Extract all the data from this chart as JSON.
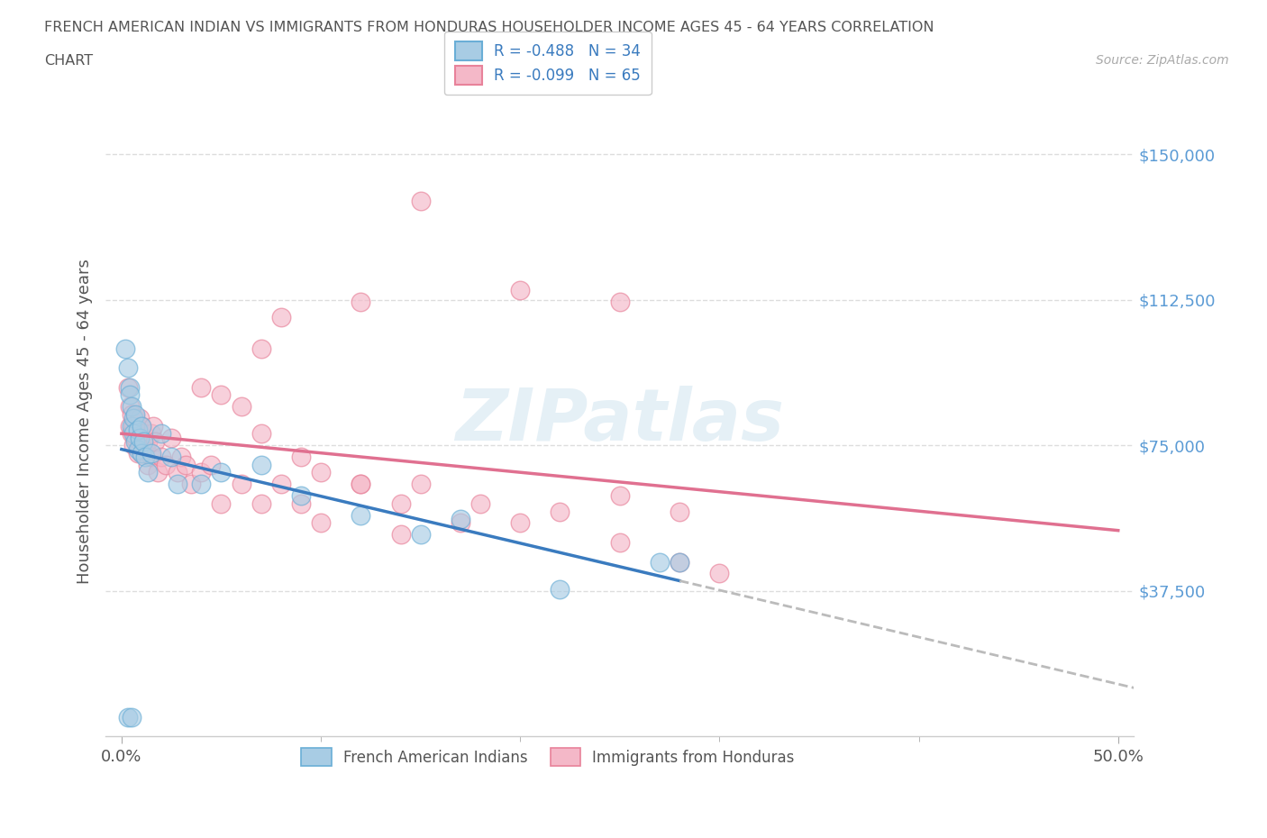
{
  "title_line1": "FRENCH AMERICAN INDIAN VS IMMIGRANTS FROM HONDURAS HOUSEHOLDER INCOME AGES 45 - 64 YEARS CORRELATION",
  "title_line2": "CHART",
  "source_text": "Source: ZipAtlas.com",
  "ylabel": "Householder Income Ages 45 - 64 years",
  "legend_1_label": "R = -0.488   N = 34",
  "legend_2_label": "R = -0.099   N = 65",
  "bottom_legend_1": "French American Indians",
  "bottom_legend_2": "Immigrants from Honduras",
  "color_blue": "#a8cce4",
  "color_pink": "#f4b8c8",
  "edge_blue": "#6aaed6",
  "edge_pink": "#e8829a",
  "line_blue": "#3a7bbf",
  "line_pink": "#e07090",
  "line_dash": "#bbbbbb",
  "xlim": [
    -0.008,
    0.508
  ],
  "ylim": [
    0,
    162500
  ],
  "xtick_labels_show": [
    "0.0%",
    "50.0%"
  ],
  "xtick_labels_show_vals": [
    0,
    0.5
  ],
  "xtick_minor": [
    0.1,
    0.2,
    0.3,
    0.4
  ],
  "ytick_labels": [
    "$37,500",
    "$75,000",
    "$112,500",
    "$150,000"
  ],
  "ytick_values": [
    37500,
    75000,
    112500,
    150000
  ],
  "ytick_color": "#5b9bd5",
  "watermark_text": "ZIPatlas",
  "blue_x": [
    0.002,
    0.003,
    0.004,
    0.004,
    0.005,
    0.005,
    0.006,
    0.006,
    0.007,
    0.007,
    0.008,
    0.008,
    0.009,
    0.01,
    0.01,
    0.011,
    0.012,
    0.013,
    0.015,
    0.02,
    0.025,
    0.028,
    0.05,
    0.07,
    0.09,
    0.12,
    0.15,
    0.17,
    0.22,
    0.27,
    0.04,
    0.003,
    0.005,
    0.28
  ],
  "blue_y": [
    100000,
    95000,
    90000,
    88000,
    85000,
    80000,
    82000,
    78000,
    83000,
    76000,
    79000,
    74000,
    77000,
    80000,
    73000,
    76000,
    72000,
    68000,
    73000,
    78000,
    72000,
    65000,
    68000,
    70000,
    62000,
    57000,
    52000,
    56000,
    38000,
    45000,
    65000,
    5000,
    5000,
    45000
  ],
  "pink_x": [
    0.003,
    0.004,
    0.004,
    0.005,
    0.005,
    0.006,
    0.006,
    0.007,
    0.007,
    0.008,
    0.008,
    0.009,
    0.009,
    0.01,
    0.01,
    0.011,
    0.012,
    0.013,
    0.013,
    0.015,
    0.015,
    0.016,
    0.017,
    0.018,
    0.02,
    0.022,
    0.025,
    0.028,
    0.03,
    0.032,
    0.035,
    0.04,
    0.045,
    0.05,
    0.06,
    0.07,
    0.08,
    0.09,
    0.1,
    0.12,
    0.14,
    0.15,
    0.17,
    0.18,
    0.2,
    0.22,
    0.25,
    0.28,
    0.3,
    0.15,
    0.2,
    0.25,
    0.07,
    0.08,
    0.12,
    0.04,
    0.05,
    0.06,
    0.07,
    0.09,
    0.1,
    0.12,
    0.25,
    0.28,
    0.14
  ],
  "pink_y": [
    90000,
    85000,
    80000,
    83000,
    78000,
    80000,
    75000,
    82000,
    77000,
    79000,
    73000,
    82000,
    76000,
    80000,
    73000,
    78000,
    75000,
    70000,
    76000,
    72000,
    78000,
    80000,
    76000,
    68000,
    72000,
    70000,
    77000,
    68000,
    72000,
    70000,
    65000,
    68000,
    70000,
    60000,
    65000,
    60000,
    65000,
    60000,
    55000,
    65000,
    60000,
    65000,
    55000,
    60000,
    55000,
    58000,
    50000,
    45000,
    42000,
    138000,
    115000,
    112000,
    100000,
    108000,
    112000,
    90000,
    88000,
    85000,
    78000,
    72000,
    68000,
    65000,
    62000,
    58000,
    52000
  ]
}
